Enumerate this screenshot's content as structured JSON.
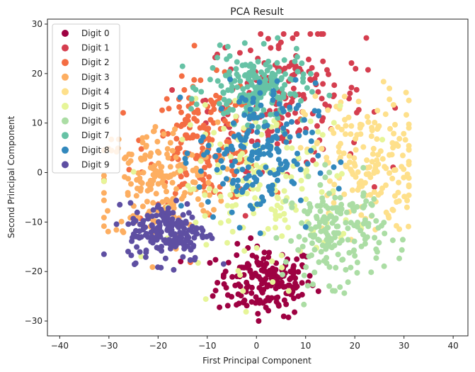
{
  "chart_data": {
    "type": "scatter",
    "title": "PCA Result",
    "xlabel": "First Principal Component",
    "ylabel": "Second Principal Component",
    "xlim": [
      -42.5,
      43
    ],
    "ylim": [
      -33,
      31
    ],
    "xticks": [
      -40,
      -30,
      -20,
      -10,
      0,
      10,
      20,
      30,
      40
    ],
    "yticks": [
      -30,
      -20,
      -10,
      0,
      10,
      20,
      30
    ],
    "grid": false,
    "legend_position": "upper-left",
    "series": [
      {
        "name": "Digit 0",
        "color": "#9e0142",
        "center": [
          2,
          -22
        ],
        "spread": [
          5,
          3.5
        ],
        "count": 180
      },
      {
        "name": "Digit 1",
        "color": "#d53e4f",
        "center": [
          6,
          15
        ],
        "spread": [
          8,
          7
        ],
        "count": 180
      },
      {
        "name": "Digit 2",
        "color": "#f46d43",
        "center": [
          -10,
          6
        ],
        "spread": [
          6,
          6
        ],
        "count": 180
      },
      {
        "name": "Digit 3",
        "color": "#fdae61",
        "center": [
          -20,
          -2
        ],
        "spread": [
          6,
          6
        ],
        "count": 180
      },
      {
        "name": "Digit 4",
        "color": "#fee08b",
        "center": [
          22,
          2
        ],
        "spread": [
          6,
          7
        ],
        "count": 180
      },
      {
        "name": "Digit 5",
        "color": "#e6f598",
        "center": [
          2,
          -3
        ],
        "spread": [
          9,
          8
        ],
        "count": 180
      },
      {
        "name": "Digit 6",
        "color": "#abdda4",
        "center": [
          16,
          -12
        ],
        "spread": [
          5,
          5
        ],
        "count": 180
      },
      {
        "name": "Digit 7",
        "color": "#66c2a5",
        "center": [
          0,
          17
        ],
        "spread": [
          5,
          3.5
        ],
        "count": 180
      },
      {
        "name": "Digit 8",
        "color": "#3288bd",
        "center": [
          0,
          4
        ],
        "spread": [
          6,
          7
        ],
        "count": 180
      },
      {
        "name": "Digit 9",
        "color": "#5e4fa2",
        "center": [
          -18,
          -12
        ],
        "spread": [
          4,
          3
        ],
        "count": 180
      }
    ]
  }
}
